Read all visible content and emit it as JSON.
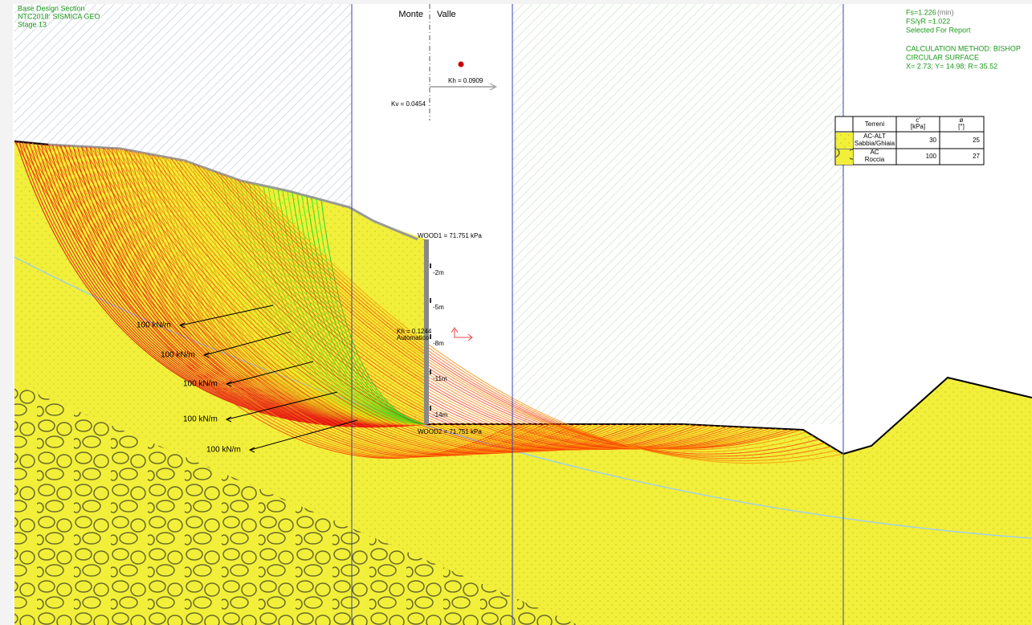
{
  "header": {
    "section": "Base Design Section",
    "norm": "NTC2018: SISMICA GEO",
    "stage": "Stage 13"
  },
  "sides": {
    "left": "Monte",
    "right": "Valle"
  },
  "seismic": {
    "kh": "Kh = 0.0909",
    "kv": "Kv = 0.0454"
  },
  "results": {
    "fs": "Fs=1.226",
    "fs_note": "(min)",
    "fs_r": "FS/γR =1.022",
    "selected": "Selected For Report",
    "method": "CALCULATION METHOD: BISHOP",
    "surface": "CIRCULAR SURFACE",
    "circle": "X= 2.73; Y= 14.98; R= 35.52"
  },
  "legend": {
    "headers": {
      "soil": "Terreni",
      "c": "c'",
      "c_unit": "[kPa]",
      "phi": "ø",
      "phi_unit": "[°]"
    },
    "rows": [
      {
        "name": "AC-ALT",
        "type": "Sabbia/Ghiaia",
        "c": 30,
        "phi": 25
      },
      {
        "name": "AC",
        "type": "Roccia",
        "c": 100,
        "phi": 27
      }
    ]
  },
  "wall": {
    "top_load": "WOOD1 = 71.751 kPa",
    "bottom_load": "WOOD2 = 71.751 kPa",
    "depths": [
      "-2m",
      "-5m",
      "-8m",
      "-11m",
      "-14m"
    ],
    "kh": "Kh = 0.1244",
    "mode": "Automatico"
  },
  "anchors": [
    "100 kN/m",
    "100 kN/m",
    "100 kN/m",
    "100 kN/m",
    "100 kN/m"
  ]
}
